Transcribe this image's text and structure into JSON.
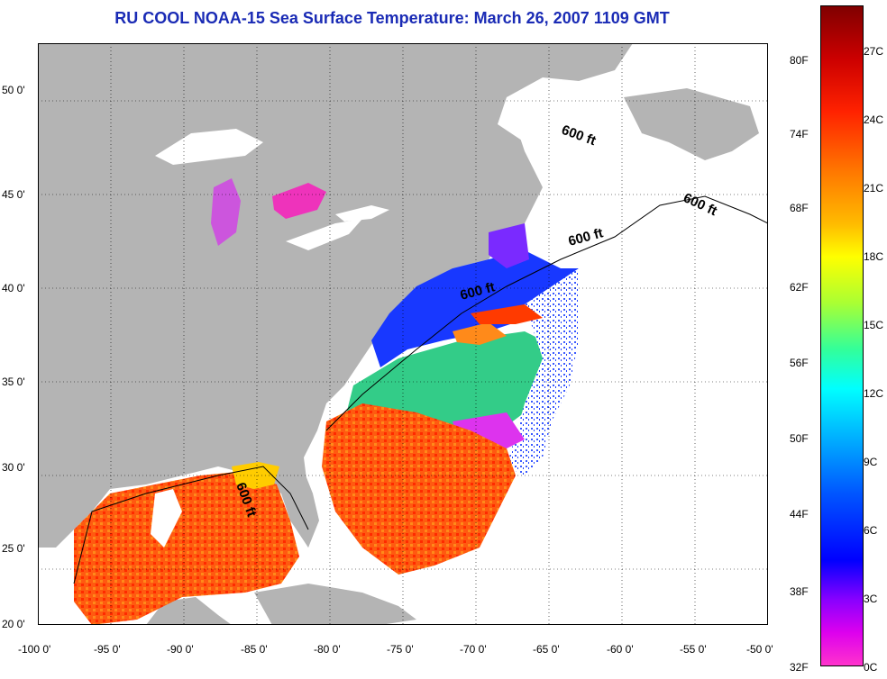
{
  "title": "RU COOL  NOAA-15  Sea Surface Temperature:  March 26, 2007 1109 GMT",
  "x_ticks": [
    "-100 0'",
    "-95 0'",
    "-90 0'",
    "-85 0'",
    "-80 0'",
    "-75 0'",
    "-70 0'",
    "-65 0'",
    "-60 0'",
    "-55 0'",
    "-50 0'"
  ],
  "y_ticks": [
    "50 0'",
    "45 0'",
    "40 0'",
    "35 0'",
    "30 0'",
    "25 0'",
    "20 0'"
  ],
  "contour_label": "600 ft",
  "colorbar": {
    "fahrenheit": [
      "80F",
      "74F",
      "68F",
      "62F",
      "56F",
      "50F",
      "44F",
      "38F",
      "32F"
    ],
    "celsius": [
      "27C",
      "24C",
      "21C",
      "18C",
      "15C",
      "12C",
      "9C",
      "6C",
      "3C",
      "0C"
    ]
  },
  "colors": {
    "land": "#b4b4b4",
    "title": "#1a2bb5",
    "warm": "#ff3300",
    "cold": "#0a1eff",
    "cloud": "#ffffff"
  }
}
